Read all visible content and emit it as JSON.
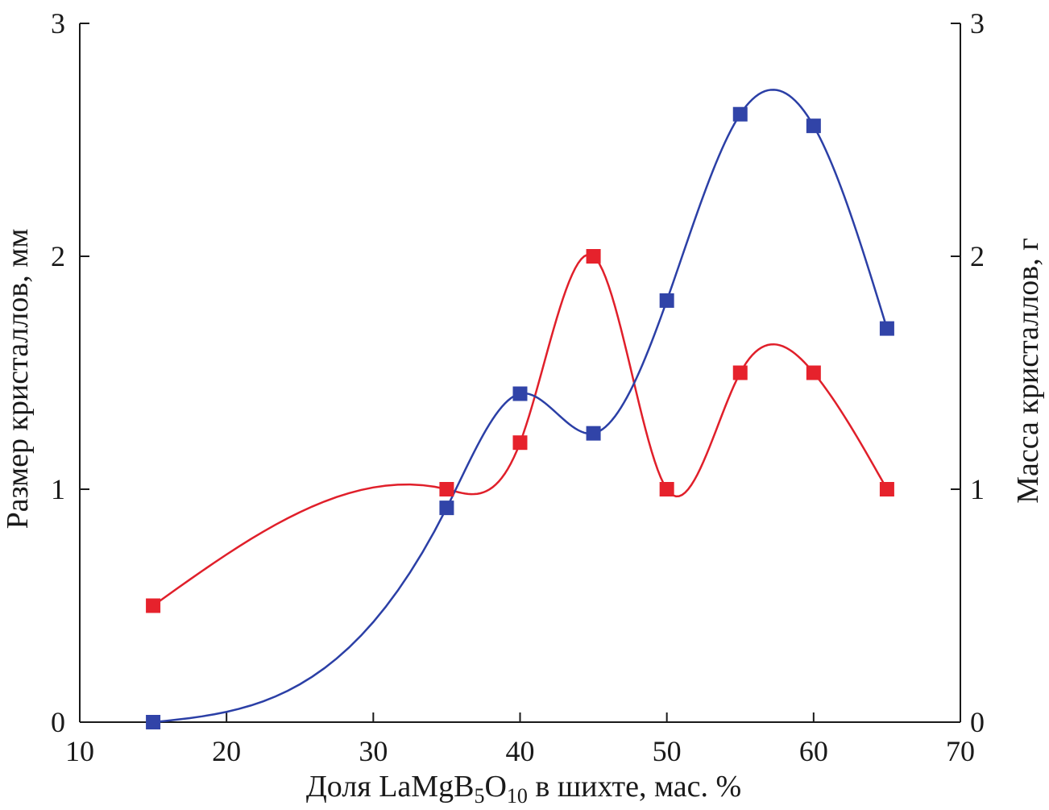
{
  "chart_data": {
    "type": "line",
    "xlabel": {
      "prefix": "Доля LaMgB",
      "sub1": "5",
      "mid": "O",
      "sub2": "10",
      "suffix": " в шихте, мас. %"
    },
    "ylabel_left": "Размер кристаллов, мм",
    "ylabel_right": "Масса кристаллов, г",
    "xlim": [
      10,
      70
    ],
    "ylim_left": [
      0,
      3
    ],
    "ylim_right": [
      0,
      3
    ],
    "x_ticks": [
      {
        "value": 10,
        "label": "10"
      },
      {
        "value": 20,
        "label": "20"
      },
      {
        "value": 30,
        "label": "30"
      },
      {
        "value": 40,
        "label": "40"
      },
      {
        "value": 50,
        "label": "50"
      },
      {
        "value": 60,
        "label": "60"
      },
      {
        "value": 70,
        "label": "70"
      }
    ],
    "y_left_ticks": [
      {
        "value": 0,
        "label": "0"
      },
      {
        "value": 1,
        "label": "1"
      },
      {
        "value": 2,
        "label": "2"
      },
      {
        "value": 3,
        "label": "3"
      }
    ],
    "y_right_ticks": [
      {
        "value": 0,
        "label": "0"
      },
      {
        "value": 1,
        "label": "1"
      },
      {
        "value": 2,
        "label": "2"
      },
      {
        "value": 3,
        "label": "3"
      }
    ],
    "grid": false,
    "series": [
      {
        "axis": "left",
        "color": "#2b3fa6",
        "marker_color": "#3144a8",
        "x": [
          15,
          35,
          40,
          45,
          50,
          55,
          60,
          65
        ],
        "y": [
          0,
          0.92,
          1.41,
          1.24,
          1.81,
          2.61,
          2.56,
          1.69
        ]
      },
      {
        "axis": "right",
        "color": "#e01f2a",
        "marker_color": "#e6222c",
        "x": [
          15,
          35,
          40,
          45,
          50,
          55,
          60,
          65
        ],
        "y": [
          0.5,
          1.0,
          1.2,
          2.0,
          1.0,
          1.5,
          1.5,
          1.0
        ]
      }
    ]
  }
}
